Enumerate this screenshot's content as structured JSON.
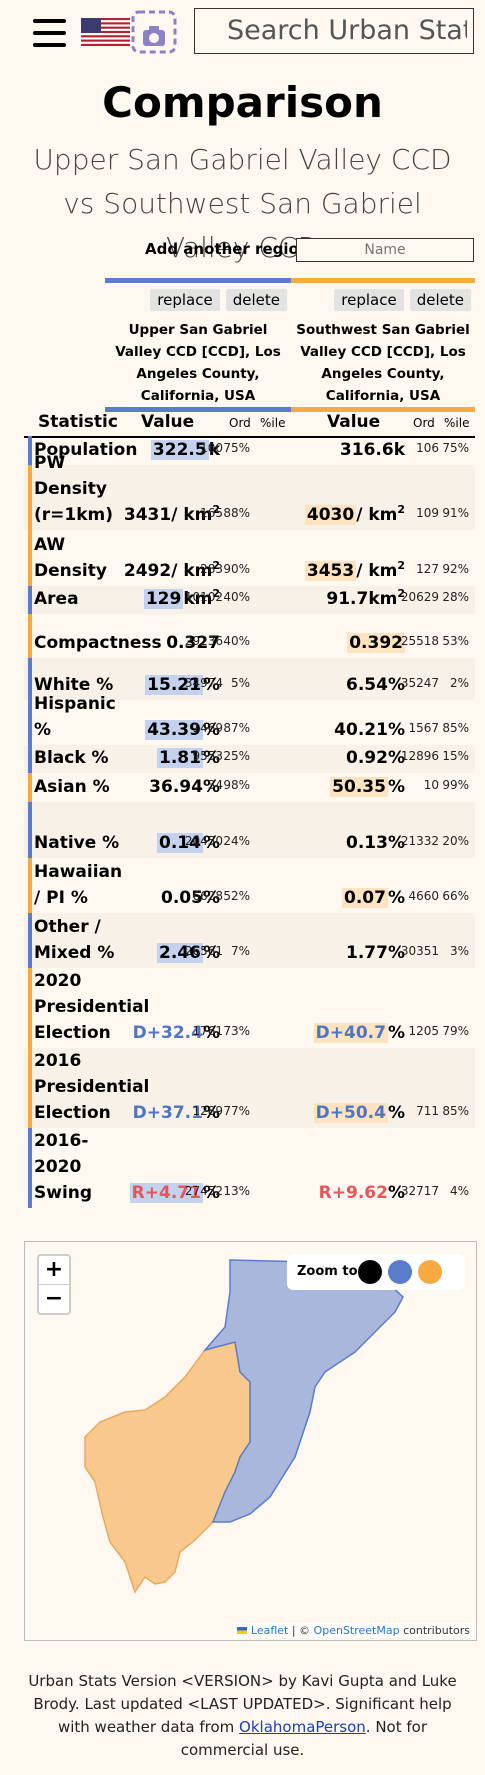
{
  "header": {
    "search_placeholder": "Search Urban Stats",
    "flag_icon": "us-flag-icon",
    "camera_icon": "screenshot-camera-icon"
  },
  "title": "Comparison",
  "subtitle": "Upper San Gabriel Valley CCD vs Southwest San Gabriel Valley CCD",
  "add_region": {
    "label": "Add another region:",
    "placeholder": "Name"
  },
  "regions": [
    {
      "name": "Upper San Gabriel Valley CCD [CCD], Los Angeles County, California, USA",
      "replace": "replace",
      "delete": "delete",
      "color": "#5a7dc9"
    },
    {
      "name": "Southwest San Gabriel Valley CCD [CCD], Los Angeles County, California, USA",
      "replace": "replace",
      "delete": "delete",
      "color": "#f7aa41"
    }
  ],
  "table": {
    "headers": {
      "statistic": "Statistic",
      "value": "Value",
      "ord": "Ord",
      "pct": "%ile"
    },
    "rows": [
      {
        "label": "Population",
        "v1": "322.5",
        "u1": "k",
        "o1": "100",
        "p1": "75%",
        "v2": "316.6",
        "u2": "k",
        "o2": "106",
        "p2": "75%",
        "hi": 1
      },
      {
        "label": "PW Density (r=1km)",
        "v1": "3431",
        "u1": "/ km",
        "o1": "165",
        "p1": "88%",
        "v2": "4030",
        "u2": "/ km",
        "o2": "109",
        "p2": "91%",
        "hi": 2,
        "sup": "2"
      },
      {
        "label": "AW Density",
        "v1": "2492",
        "u1": "/ km",
        "o1": "283",
        "p1": "90%",
        "v2": "3453",
        "u2": "/ km",
        "o2": "127",
        "p2": "92%",
        "hi": 2,
        "sup": "2"
      },
      {
        "label": "Area",
        "v1": "129",
        "u1": "km",
        "o1": "10102",
        "p1": "40%",
        "v2": "91.7",
        "u2": "km",
        "o2": "20629",
        "p2": "28%",
        "hi": 1,
        "sup": "2"
      },
      {
        "label": "Compactness",
        "v1": "0.327",
        "u1": "",
        "o1": "29236",
        "p1": "40%",
        "v2": "0.392",
        "u2": "",
        "o2": "25518",
        "p2": "53%",
        "hi": 2
      },
      {
        "label": "White %",
        "v1": "15.21",
        "u1": "%",
        "o1": "34974",
        "p1": "5%",
        "v2": "6.54",
        "u2": "%",
        "o2": "35247",
        "p2": "2%",
        "hi": 1
      },
      {
        "label": "Hispanic %",
        "v1": "43.39",
        "u1": "%",
        "o1": "1469",
        "p1": "87%",
        "v2": "40.21",
        "u2": "%",
        "o2": "1567",
        "p2": "85%",
        "hi": 1
      },
      {
        "label": "Black %",
        "v1": "1.81",
        "u1": "%",
        "o1": "9553",
        "p1": "25%",
        "v2": "0.92",
        "u2": "%",
        "o2": "12896",
        "p2": "15%",
        "hi": 1
      },
      {
        "label": "Asian %",
        "v1": "36.94",
        "u1": "%",
        "o1": "34",
        "p1": "98%",
        "v2": "50.35",
        "u2": "%",
        "o2": "10",
        "p2": "99%",
        "hi": 2
      },
      {
        "label": "Native %",
        "v1": "0.14",
        "u1": "%",
        "o1": "20450",
        "p1": "24%",
        "v2": "0.13",
        "u2": "%",
        "o2": "21332",
        "p2": "20%",
        "hi": 1
      },
      {
        "label": "Hawaiian / PI %",
        "v1": "0.05",
        "u1": "%",
        "o1": "6628",
        "p1": "52%",
        "v2": "0.07",
        "u2": "%",
        "o2": "4660",
        "p2": "66%",
        "hi": 2
      },
      {
        "label": "Other / Mixed %",
        "v1": "2.46",
        "u1": "%",
        "o1": "26561",
        "p1": "7%",
        "v2": "1.77",
        "u2": "%",
        "o2": "30351",
        "p2": "3%",
        "hi": 1
      },
      {
        "label": "2020 Presidential Election",
        "v1": "D+32.4",
        "u1": "%",
        "o1": "1761",
        "p1": "73%",
        "v2": "D+40.7",
        "u2": "%",
        "o2": "1205",
        "p2": "79%",
        "hi": 2,
        "party": "blue"
      },
      {
        "label": "2016 Presidential Election",
        "v1": "D+37.1",
        "u1": "%",
        "o1": "1289",
        "p1": "77%",
        "v2": "D+50.4",
        "u2": "%",
        "o2": "711",
        "p2": "85%",
        "hi": 2,
        "party": "blue"
      },
      {
        "label": "2016-2020 Swing",
        "v1": "R+4.71",
        "u1": "%",
        "o1": "27452",
        "p1": "13%",
        "v2": "R+9.62",
        "u2": "%",
        "o2": "32717",
        "p2": "4%",
        "hi": 1,
        "party": "red"
      }
    ]
  },
  "map": {
    "zoom_in": "+",
    "zoom_out": "−",
    "zoom_to_label": "Zoom to:",
    "zoom_colors": [
      "#000000",
      "#5a7dc9",
      "#f7aa41"
    ],
    "attribution_leaflet": "Leaflet",
    "attribution_sep": "| ©",
    "attribution_osm": "OpenStreetMap",
    "attribution_contrib": "contributors"
  },
  "footer": {
    "line1": "Urban Stats Version <VERSION> by Kavi Gupta and Luke Brody. Last updated <LAST UPDATED>. Significant help with weather data from",
    "link": "OklahomaPerson",
    "line2": ". Not for commercial use."
  }
}
